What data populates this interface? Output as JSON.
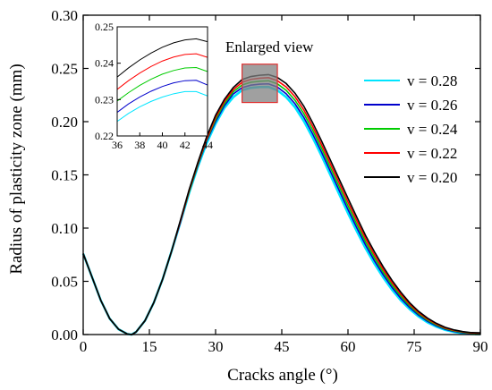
{
  "chart_data": {
    "type": "line",
    "xlabel": "Cracks angle (°)",
    "ylabel": "Radius of plasticity zone (mm)",
    "xlim": [
      0,
      90
    ],
    "ylim": [
      0,
      0.3
    ],
    "xticks": [
      "0",
      "15",
      "30",
      "45",
      "60",
      "75",
      "90"
    ],
    "yticks": [
      "0.00",
      "0.05",
      "0.10",
      "0.15",
      "0.20",
      "0.25",
      "0.30"
    ],
    "grid": false,
    "legend_position": "right",
    "annotation": "Enlarged view",
    "x": [
      0,
      2,
      4,
      6,
      8,
      10,
      11,
      12,
      14,
      16,
      18,
      20,
      22,
      24,
      26,
      28,
      30,
      32,
      34,
      36,
      38,
      40,
      42,
      44,
      46,
      48,
      50,
      52,
      54,
      56,
      58,
      60,
      62,
      64,
      66,
      68,
      70,
      72,
      74,
      76,
      78,
      80,
      82,
      84,
      86,
      88,
      90
    ],
    "series": [
      {
        "name": "v = 0.28",
        "color": "#00e5ff",
        "values": [
          0.076,
          0.054,
          0.032,
          0.015,
          0.005,
          0.0005,
          0.0,
          0.0025,
          0.013,
          0.03,
          0.052,
          0.078,
          0.105,
          0.133,
          0.158,
          0.18,
          0.198,
          0.213,
          0.223,
          0.2295,
          0.2318,
          0.2325,
          0.2326,
          0.2295,
          0.223,
          0.2135,
          0.2005,
          0.185,
          0.168,
          0.15,
          0.132,
          0.114,
          0.097,
          0.081,
          0.0665,
          0.0535,
          0.042,
          0.032,
          0.0238,
          0.017,
          0.0115,
          0.0074,
          0.0044,
          0.0024,
          0.0012,
          0.0006,
          0.0004
        ]
      },
      {
        "name": "v = 0.26",
        "color": "#0000cc",
        "values": [
          0.076,
          0.054,
          0.032,
          0.015,
          0.005,
          0.0005,
          0.0,
          0.0025,
          0.013,
          0.03,
          0.052,
          0.078,
          0.105,
          0.134,
          0.159,
          0.182,
          0.2,
          0.215,
          0.226,
          0.232,
          0.2343,
          0.2352,
          0.2355,
          0.2325,
          0.2262,
          0.2168,
          0.204,
          0.1885,
          0.1715,
          0.1535,
          0.1355,
          0.1175,
          0.1003,
          0.084,
          0.0693,
          0.056,
          0.0442,
          0.0339,
          0.0253,
          0.0182,
          0.0125,
          0.0082,
          0.005,
          0.0029,
          0.0016,
          0.0009,
          0.0007
        ]
      },
      {
        "name": "v = 0.24",
        "color": "#00cc00",
        "values": [
          0.076,
          0.054,
          0.032,
          0.015,
          0.005,
          0.0005,
          0.0,
          0.0025,
          0.013,
          0.03,
          0.052,
          0.078,
          0.106,
          0.134,
          0.16,
          0.183,
          0.202,
          0.217,
          0.228,
          0.2345,
          0.237,
          0.238,
          0.2384,
          0.2355,
          0.2294,
          0.2201,
          0.2075,
          0.192,
          0.175,
          0.157,
          0.139,
          0.121,
          0.1036,
          0.087,
          0.0721,
          0.0585,
          0.0464,
          0.0358,
          0.0268,
          0.0194,
          0.0135,
          0.009,
          0.0056,
          0.0034,
          0.002,
          0.0012,
          0.001
        ]
      },
      {
        "name": "v = 0.22",
        "color": "#ff0000",
        "values": [
          0.076,
          0.054,
          0.032,
          0.015,
          0.005,
          0.0005,
          0.0,
          0.0025,
          0.013,
          0.03,
          0.052,
          0.078,
          0.106,
          0.135,
          0.161,
          0.184,
          0.204,
          0.219,
          0.23,
          0.237,
          0.2397,
          0.2408,
          0.2413,
          0.2385,
          0.2326,
          0.2234,
          0.211,
          0.1955,
          0.1785,
          0.1605,
          0.1425,
          0.1245,
          0.1069,
          0.09,
          0.0749,
          0.061,
          0.0486,
          0.0377,
          0.0283,
          0.0206,
          0.0145,
          0.0098,
          0.0062,
          0.0039,
          0.0024,
          0.0015,
          0.0013
        ]
      },
      {
        "name": "v = 0.20",
        "color": "#000000",
        "values": [
          0.076,
          0.054,
          0.032,
          0.015,
          0.005,
          0.0005,
          0.0,
          0.0025,
          0.013,
          0.03,
          0.052,
          0.078,
          0.107,
          0.136,
          0.162,
          0.186,
          0.206,
          0.221,
          0.232,
          0.2395,
          0.2424,
          0.2436,
          0.2442,
          0.2415,
          0.2358,
          0.2267,
          0.2145,
          0.199,
          0.182,
          0.164,
          0.146,
          0.128,
          0.1102,
          0.093,
          0.0777,
          0.0635,
          0.0508,
          0.0396,
          0.0298,
          0.0218,
          0.0155,
          0.0106,
          0.0068,
          0.0044,
          0.0028,
          0.0018,
          0.0016
        ]
      }
    ],
    "inset": {
      "xlim": [
        36,
        44
      ],
      "ylim": [
        0.22,
        0.25
      ],
      "xticks": [
        "36",
        "38",
        "40",
        "42",
        "44"
      ],
      "yticks": [
        "0.22",
        "0.23",
        "0.24",
        "0.25"
      ],
      "x": [
        36,
        37,
        38,
        39,
        40,
        41,
        42,
        43,
        44
      ],
      "series": [
        {
          "name": "v = 0.28",
          "color": "#00e5ff",
          "values": [
            0.224,
            0.2262,
            0.228,
            0.2295,
            0.2307,
            0.2316,
            0.2322,
            0.2322,
            0.231
          ]
        },
        {
          "name": "v = 0.26",
          "color": "#0000cc",
          "values": [
            0.2265,
            0.2288,
            0.2307,
            0.2323,
            0.2336,
            0.2346,
            0.2352,
            0.2353,
            0.234
          ]
        },
        {
          "name": "v = 0.24",
          "color": "#00cc00",
          "values": [
            0.2296,
            0.2319,
            0.2339,
            0.2356,
            0.237,
            0.238,
            0.2387,
            0.2388,
            0.2377
          ]
        },
        {
          "name": "v = 0.22",
          "color": "#ff0000",
          "values": [
            0.2328,
            0.2352,
            0.2373,
            0.2391,
            0.2406,
            0.2417,
            0.2424,
            0.2426,
            0.2416
          ]
        },
        {
          "name": "v = 0.20",
          "color": "#000000",
          "values": [
            0.2362,
            0.2387,
            0.2409,
            0.2428,
            0.2444,
            0.2456,
            0.2464,
            0.2467,
            0.2459
          ]
        }
      ]
    }
  }
}
